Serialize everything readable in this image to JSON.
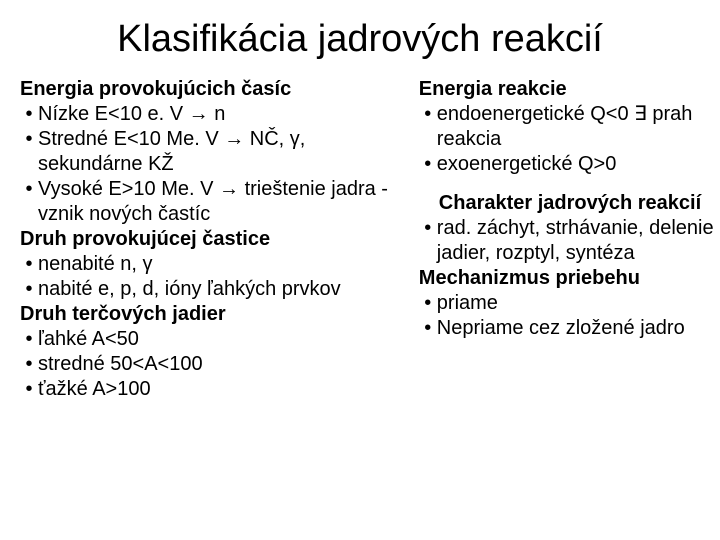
{
  "title": "Klasifikácia jadrových reakcií",
  "left": {
    "h1": "Energia provokujúcich časíc",
    "b1": "Nízke E<10 e. V → n",
    "b2": "Stredné E<10 Me. V → NČ, γ, sekundárne KŽ",
    "b3": "Vysoké E>10 Me. V → trieštenie jadra - vznik nových častíc",
    "h2": "Druh provokujúcej častice",
    "b4": "nenabité n, γ",
    "b5": "nabité e, p, d, ióny ľahkých prvkov",
    "h3": "Druh terčových jadier",
    "b6": "ľahké A<50",
    "b7": "stredné 50<A<100",
    "b8": "ťažké A>100"
  },
  "right": {
    "h1": "Energia reakcie",
    "b1": "endoenergetické Q<0 ∃ prah reakcia",
    "b2": "exoenergetické Q>0",
    "h2": "Charakter  jadrových reakcií",
    "b3": "rad. záchyt, strhávanie, delenie jadier, rozptyl, syntéza",
    "h3": "Mechanizmus priebehu",
    "b4": "priame",
    "b5": "Nepriame cez zložené jadro"
  }
}
